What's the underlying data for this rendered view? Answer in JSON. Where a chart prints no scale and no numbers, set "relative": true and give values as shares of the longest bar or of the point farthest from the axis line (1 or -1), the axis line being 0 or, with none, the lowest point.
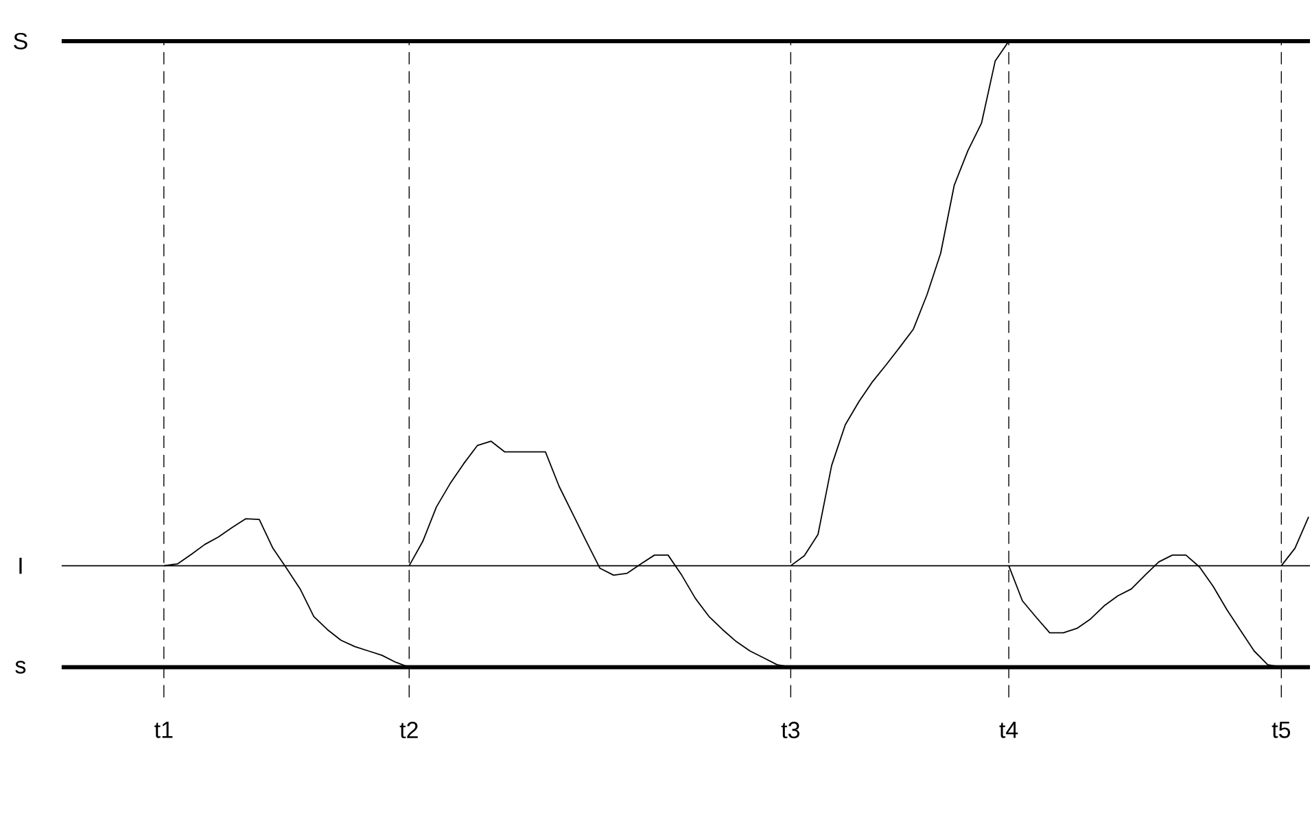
{
  "chart_data": {
    "type": "line",
    "relative": true,
    "categories": [
      null,
      null,
      null,
      null,
      null,
      null,
      null,
      "t1",
      null,
      null,
      null,
      null,
      null,
      null,
      null,
      null,
      null,
      null,
      null,
      null,
      null,
      null,
      null,
      null,
      null,
      "t2",
      null,
      null,
      null,
      null,
      null,
      null,
      null,
      null,
      null,
      null,
      null,
      null,
      null,
      null,
      null,
      null,
      null,
      null,
      null,
      null,
      null,
      null,
      null,
      null,
      null,
      null,
      null,
      "t3",
      null,
      null,
      null,
      null,
      null,
      null,
      null,
      null,
      null,
      null,
      null,
      null,
      null,
      null,
      null,
      "t4",
      null,
      null,
      null,
      null,
      null,
      null,
      null,
      null,
      null,
      null,
      null,
      null,
      null,
      null,
      null,
      null,
      null,
      null,
      null,
      "t5",
      null,
      null
    ],
    "series": [
      {
        "color": "#000000",
        "values": [
          null,
          null,
          null,
          null,
          null,
          null,
          null,
          0.162,
          0.165,
          0.18,
          0.196,
          0.208,
          0.223,
          0.237,
          0.236,
          0.19,
          0.158,
          0.125,
          0.081,
          0.06,
          0.043,
          0.033,
          0.026,
          0.019,
          0.008,
          0,
          null,
          null,
          null,
          null,
          null,
          null,
          null,
          null,
          null,
          null,
          null,
          null,
          null,
          null,
          null,
          null,
          null,
          null,
          null,
          null,
          null,
          null,
          null,
          null,
          null,
          null,
          null,
          null,
          null,
          null,
          null,
          null,
          null,
          null,
          null,
          null,
          null,
          null,
          null,
          null,
          null,
          null,
          null,
          null,
          null,
          null,
          null,
          null,
          null,
          null,
          null,
          null,
          null,
          null,
          null,
          null,
          null,
          null,
          null,
          null,
          null,
          null,
          null,
          null,
          null,
          null
        ]
      },
      {
        "color": "#000000",
        "values": [
          null,
          null,
          null,
          null,
          null,
          null,
          null,
          null,
          null,
          null,
          null,
          null,
          null,
          null,
          null,
          null,
          null,
          null,
          null,
          null,
          null,
          null,
          null,
          null,
          null,
          0.162,
          0.201,
          0.256,
          0.293,
          0.325,
          0.354,
          0.361,
          0.344,
          0.344,
          0.344,
          0.344,
          0.289,
          0.245,
          0.201,
          0.158,
          0.147,
          0.15,
          0.165,
          0.179,
          0.179,
          0.147,
          0.11,
          0.081,
          0.06,
          0.041,
          0.026,
          0.015,
          0.004,
          0,
          null,
          null,
          null,
          null,
          null,
          null,
          null,
          null,
          null,
          null,
          null,
          null,
          null,
          null,
          null,
          null,
          null,
          null,
          null,
          null,
          null,
          null,
          null,
          null,
          null,
          null,
          null,
          null,
          null,
          null,
          null,
          null,
          null,
          null,
          null,
          null,
          null,
          null
        ]
      },
      {
        "color": "#000000",
        "values": [
          null,
          null,
          null,
          null,
          null,
          null,
          null,
          null,
          null,
          null,
          null,
          null,
          null,
          null,
          null,
          null,
          null,
          null,
          null,
          null,
          null,
          null,
          null,
          null,
          null,
          null,
          null,
          null,
          null,
          null,
          null,
          null,
          null,
          null,
          null,
          null,
          null,
          null,
          null,
          null,
          null,
          null,
          null,
          null,
          null,
          null,
          null,
          null,
          null,
          null,
          null,
          null,
          null,
          0.162,
          0.178,
          0.212,
          0.322,
          0.387,
          0.424,
          0.456,
          0.483,
          0.511,
          0.54,
          0.595,
          0.661,
          0.77,
          0.825,
          0.869,
          0.968,
          1,
          null,
          null,
          null,
          null,
          null,
          null,
          null,
          null,
          null,
          null,
          null,
          null,
          null,
          null,
          null,
          null,
          null,
          null,
          null,
          null,
          null,
          null
        ]
      },
      {
        "color": "#000000",
        "values": [
          null,
          null,
          null,
          null,
          null,
          null,
          null,
          null,
          null,
          null,
          null,
          null,
          null,
          null,
          null,
          null,
          null,
          null,
          null,
          null,
          null,
          null,
          null,
          null,
          null,
          null,
          null,
          null,
          null,
          null,
          null,
          null,
          null,
          null,
          null,
          null,
          null,
          null,
          null,
          null,
          null,
          null,
          null,
          null,
          null,
          null,
          null,
          null,
          null,
          null,
          null,
          null,
          null,
          null,
          null,
          null,
          null,
          null,
          null,
          null,
          null,
          null,
          null,
          null,
          null,
          null,
          null,
          null,
          null,
          0.162,
          0.106,
          0.08,
          0.055,
          0.055,
          0.062,
          0.077,
          0.098,
          0.114,
          0.125,
          0.147,
          0.168,
          0.179,
          0.179,
          0.16,
          0.129,
          0.092,
          0.059,
          0.026,
          0.004,
          0,
          null,
          null
        ]
      },
      {
        "color": "#000000",
        "values": [
          null,
          null,
          null,
          null,
          null,
          null,
          null,
          null,
          null,
          null,
          null,
          null,
          null,
          null,
          null,
          null,
          null,
          null,
          null,
          null,
          null,
          null,
          null,
          null,
          null,
          null,
          null,
          null,
          null,
          null,
          null,
          null,
          null,
          null,
          null,
          null,
          null,
          null,
          null,
          null,
          null,
          null,
          null,
          null,
          null,
          null,
          null,
          null,
          null,
          null,
          null,
          null,
          null,
          null,
          null,
          null,
          null,
          null,
          null,
          null,
          null,
          null,
          null,
          null,
          null,
          null,
          null,
          null,
          null,
          null,
          null,
          null,
          null,
          null,
          null,
          null,
          null,
          null,
          null,
          null,
          null,
          null,
          null,
          null,
          null,
          null,
          null,
          null,
          null,
          0.162,
          0.19,
          0.24
        ]
      }
    ],
    "ref_lines": [
      {
        "axis": "y",
        "value": 1,
        "label": "S"
      },
      {
        "axis": "y",
        "value": 0.162,
        "label": "I"
      },
      {
        "axis": "x",
        "value": "t1",
        "line_style": "dashed"
      },
      {
        "axis": "x",
        "value": "t2",
        "line_style": "dashed"
      },
      {
        "axis": "x",
        "value": "t3",
        "line_style": "dashed"
      },
      {
        "axis": "x",
        "value": "t4",
        "line_style": "dashed"
      },
      {
        "axis": "x",
        "value": "t5",
        "line_style": "dashed"
      }
    ],
    "annotations": [
      "s"
    ]
  }
}
